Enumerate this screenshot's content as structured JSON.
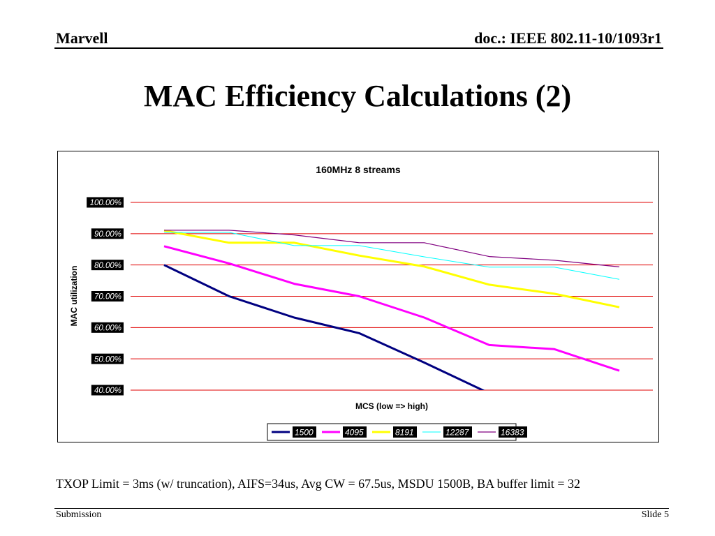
{
  "header": {
    "left": "Marvell",
    "right": "doc.: IEEE 802.11-10/1093r1"
  },
  "slide_title": "MAC Efficiency Calculations (2)",
  "caption": "TXOP Limit = 3ms (w/ truncation), AIFS=34us, Avg CW = 67.5us, MSDU 1500B, BA buffer limit = 32",
  "footer": {
    "left": "Submission",
    "right": "Slide 5"
  },
  "chart_data": {
    "type": "line",
    "title": "160MHz 8 streams",
    "xlabel": "MCS (low => high)",
    "ylabel": "MAC utilization",
    "ylim": [
      0.4,
      1.0
    ],
    "yticks": [
      "40.00%",
      "50.00%",
      "60.00%",
      "70.00%",
      "80.00%",
      "90.00%",
      "100.00%"
    ],
    "x": [
      1,
      2,
      3,
      4,
      5,
      6,
      7,
      8
    ],
    "grid": true,
    "gridline_color": "#e00000",
    "legend_position": "bottom",
    "series": [
      {
        "name": "1500",
        "color": "#000080",
        "width": 3,
        "values": [
          0.8,
          0.7,
          0.632,
          0.582,
          0.488,
          0.39,
          null,
          null
        ]
      },
      {
        "name": "4095",
        "color": "#ff00ff",
        "width": 3,
        "values": [
          0.86,
          0.805,
          0.74,
          0.7,
          0.632,
          0.544,
          0.531,
          0.462
        ]
      },
      {
        "name": "8191",
        "color": "#ffff00",
        "width": 3,
        "values": [
          0.91,
          0.871,
          0.871,
          0.83,
          0.795,
          0.737,
          0.708,
          0.665
        ]
      },
      {
        "name": "12287",
        "color": "#00ffff",
        "width": 1,
        "values": [
          0.904,
          0.904,
          0.862,
          0.862,
          0.826,
          0.793,
          0.793,
          0.754
        ]
      },
      {
        "name": "16383",
        "color": "#800080",
        "width": 1.2,
        "values": [
          0.911,
          0.911,
          0.896,
          0.871,
          0.871,
          0.827,
          0.815,
          0.794
        ]
      }
    ]
  }
}
